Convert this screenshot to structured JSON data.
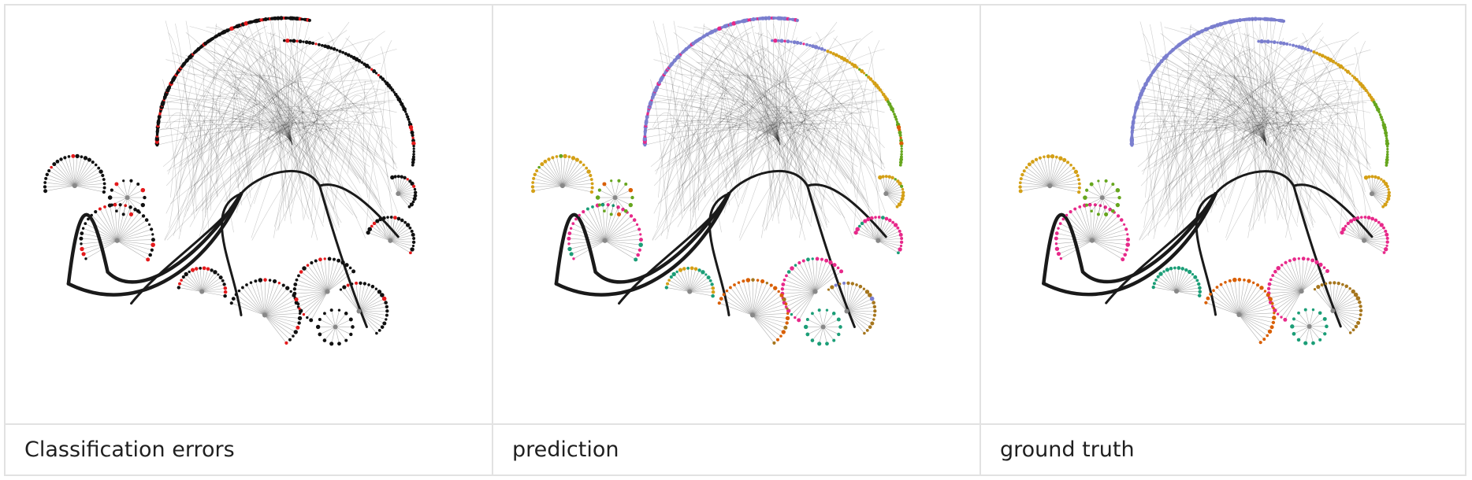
{
  "panels": [
    {
      "caption": "Classification errors",
      "mode": "errors"
    },
    {
      "caption": "prediction",
      "mode": "prediction"
    },
    {
      "caption": "ground truth",
      "mode": "truth"
    }
  ],
  "colors": {
    "edge": "#1a1a1a",
    "error_node": "#e41a1c",
    "correct_node": "#111111",
    "class_palette": [
      "#7b7fcf",
      "#e7298a",
      "#1b9e77",
      "#d4a017",
      "#66a61e",
      "#d95f02",
      "#a6761d"
    ]
  }
}
